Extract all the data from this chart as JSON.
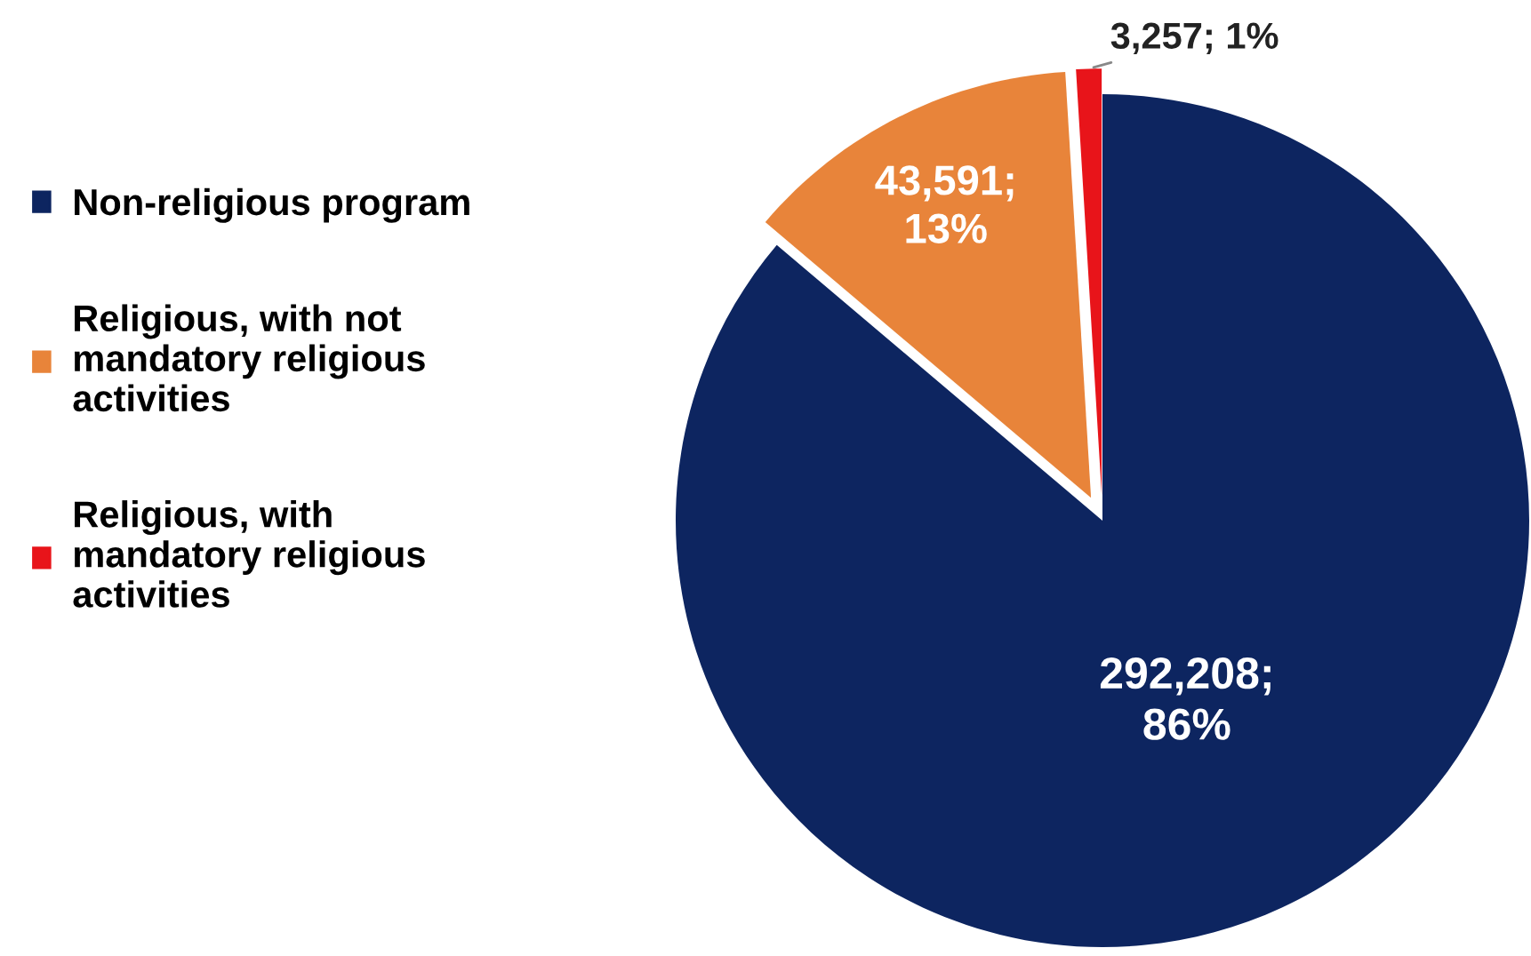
{
  "chart_data": {
    "type": "pie",
    "categories": [
      "Non-religious program",
      "Religious, with not\nmandatory religious\nactivities",
      "Religious, with\nmandatory religious\nactivities"
    ],
    "values": [
      292208,
      43591,
      3257
    ],
    "colors": [
      "#0d2560",
      "#e8843a",
      "#e8141a"
    ],
    "value_labels": [
      "292,208;\n86%",
      "43,591;\n13%",
      "3,257; 1%"
    ],
    "legend": "left"
  }
}
